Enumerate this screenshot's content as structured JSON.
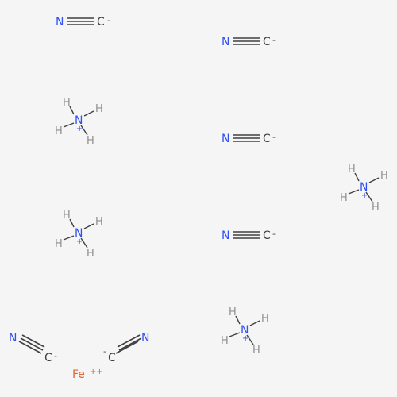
{
  "colors": {
    "background": "#f5f5f5",
    "nitrogen": "#3050f8",
    "carbon": "#404040",
    "hydrogen": "#909090",
    "iron": "#e06633",
    "bond": "#404040"
  },
  "labels": {
    "n": "N",
    "c": "C",
    "h": "H",
    "fe": "Fe",
    "minus": "-",
    "plus": "+",
    "double_plus": "++"
  },
  "cyanide_count": 6,
  "ammonium_count": 4,
  "iron_count": 1
}
